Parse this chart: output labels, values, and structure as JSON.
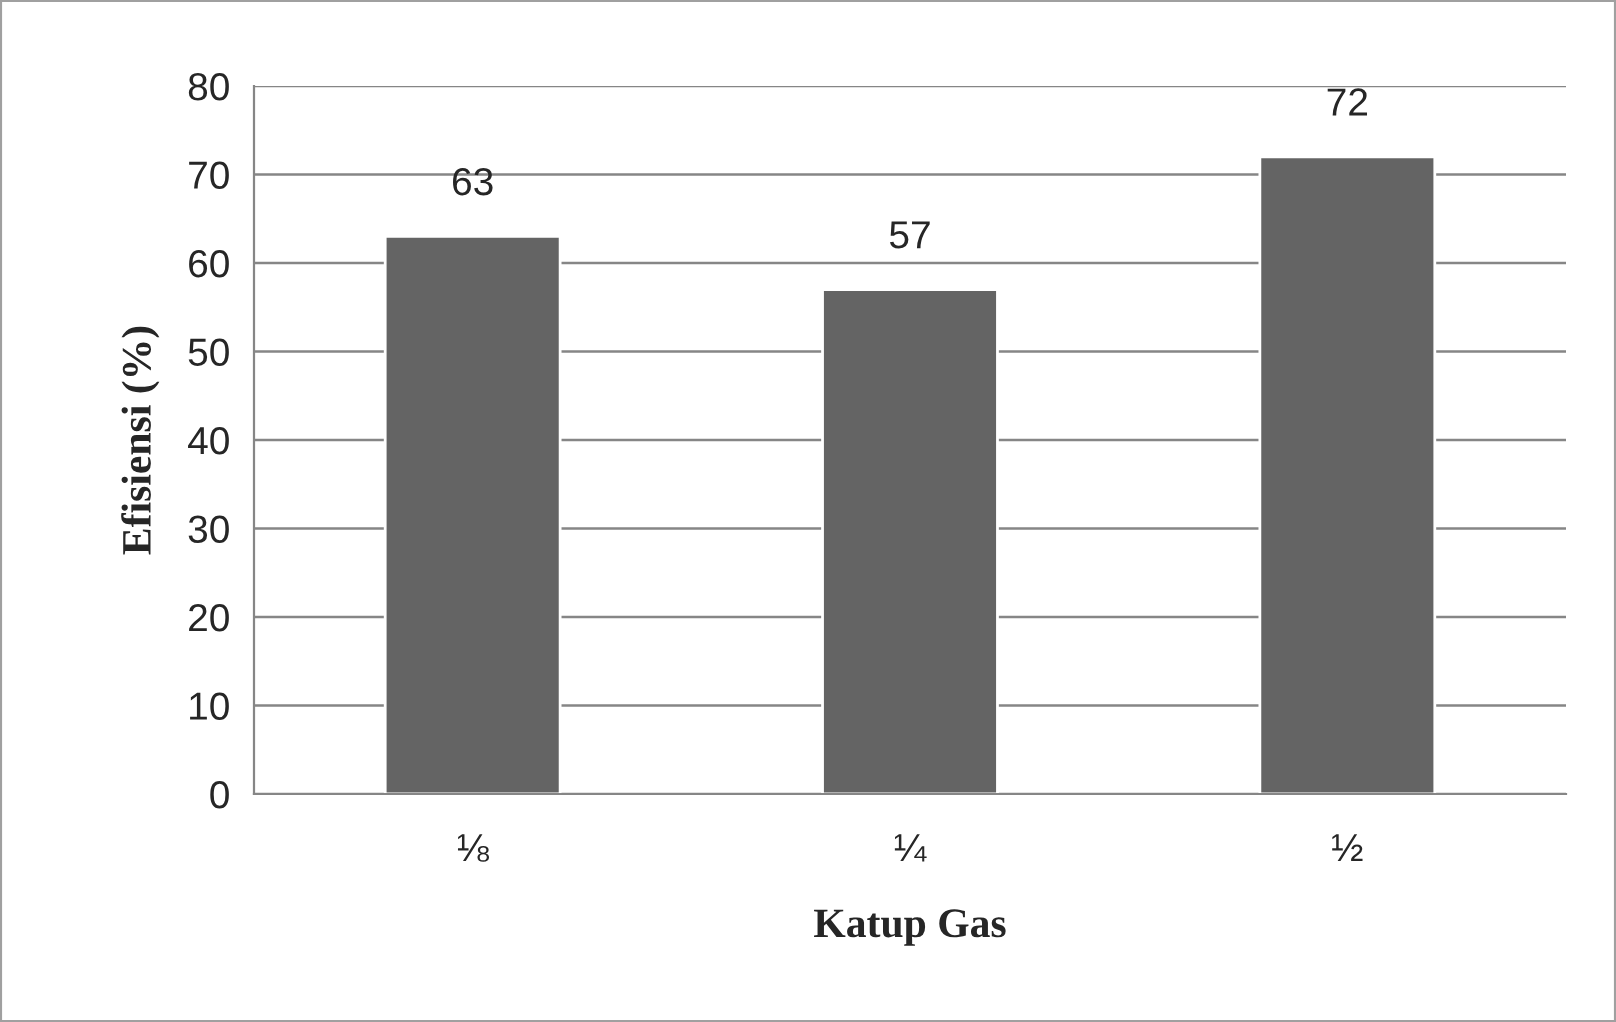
{
  "chart_data": {
    "type": "bar",
    "xlabel": "Katup Gas",
    "ylabel": "Efisiensi (%)",
    "categories": [
      "⅛",
      "¼",
      "½"
    ],
    "values": [
      63,
      57,
      72
    ],
    "color": "#646464",
    "ylim": [
      0,
      80
    ],
    "yticks": [
      0,
      10,
      20,
      30,
      40,
      50,
      60,
      70,
      80
    ],
    "grid": "y",
    "data_labels": true
  }
}
